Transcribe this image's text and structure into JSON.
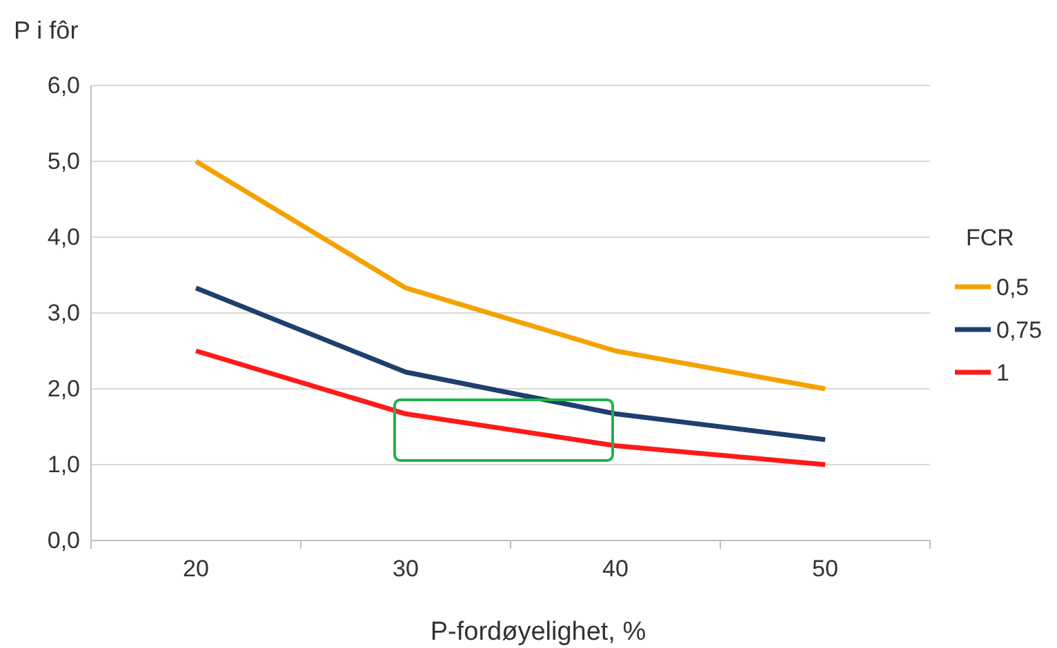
{
  "chart_data": {
    "type": "line",
    "ylabel": "P i fôr",
    "xlabel": "P-fordøyelighet, %",
    "legend_title": "FCR",
    "legend": "right",
    "grid": "y",
    "marker": "none",
    "line_style": "solid",
    "categories": [
      "20",
      "30",
      "40",
      "50"
    ],
    "ylim": [
      0,
      6
    ],
    "yticks": [
      {
        "value": 0,
        "label": "0,0"
      },
      {
        "value": 1,
        "label": "1,0"
      },
      {
        "value": 2,
        "label": "2,0"
      },
      {
        "value": 3,
        "label": "3,0"
      },
      {
        "value": 4,
        "label": "4,0"
      },
      {
        "value": 5,
        "label": "5,0"
      },
      {
        "value": 6,
        "label": "6,0"
      }
    ],
    "series": [
      {
        "name": "0,5",
        "color": "#f5a100",
        "values": [
          5.0,
          3.33,
          2.5,
          2.0
        ]
      },
      {
        "name": "0,75",
        "color": "#1f3f6e",
        "values": [
          3.33,
          2.22,
          1.67,
          1.33
        ]
      },
      {
        "name": "1",
        "color": "#ff1a1a",
        "values": [
          2.5,
          1.67,
          1.25,
          1.0
        ]
      }
    ]
  }
}
